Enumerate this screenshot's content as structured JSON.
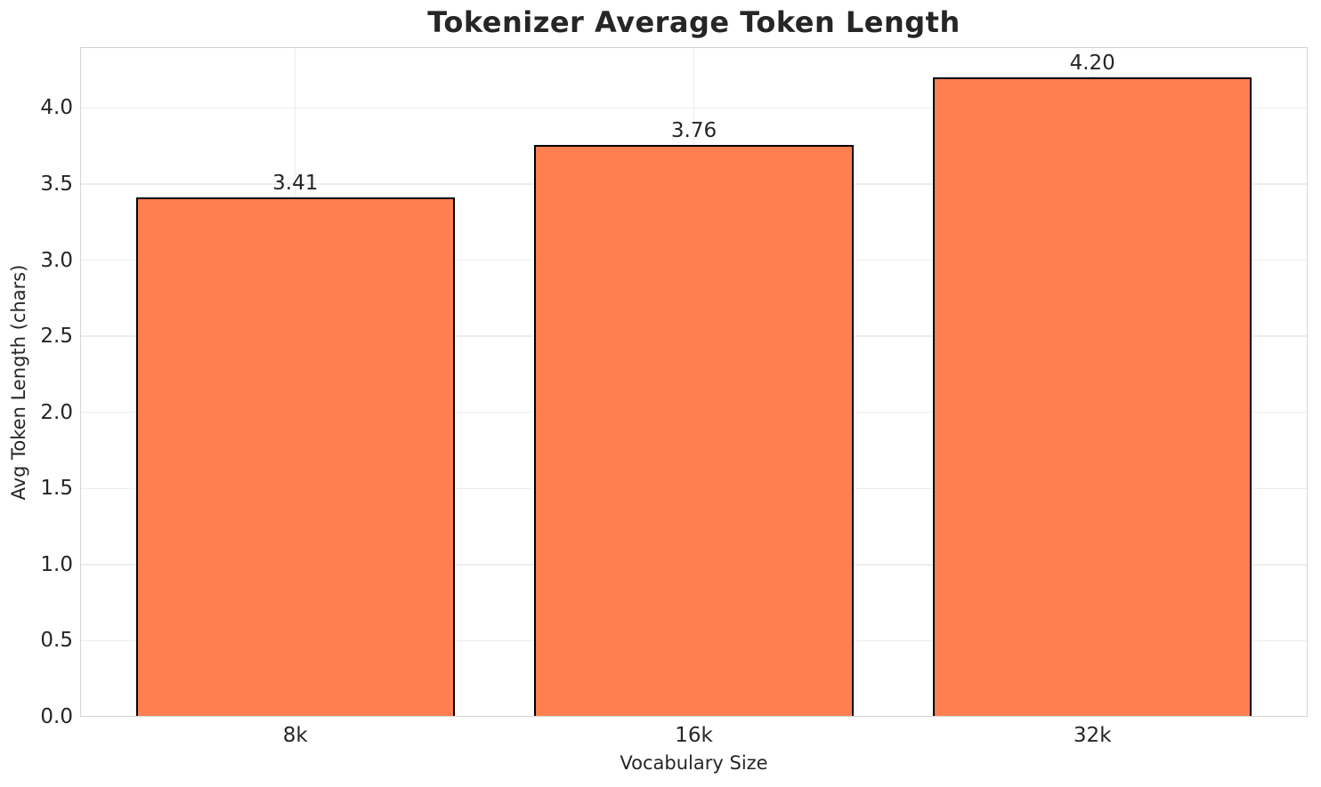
{
  "chart_data": {
    "type": "bar",
    "title": "Tokenizer Average Token Length",
    "xlabel": "Vocabulary Size",
    "ylabel": "Avg Token Length (chars)",
    "categories": [
      "8k",
      "16k",
      "32k"
    ],
    "values": [
      3.41,
      3.76,
      4.2
    ],
    "bar_labels": [
      "3.41",
      "3.76",
      "4.20"
    ],
    "ytick_values": [
      0.0,
      0.5,
      1.0,
      1.5,
      2.0,
      2.5,
      3.0,
      3.5,
      4.0
    ],
    "ytick_labels": [
      "0.0",
      "0.5",
      "1.0",
      "1.5",
      "2.0",
      "2.5",
      "3.0",
      "3.5",
      "4.0"
    ],
    "ylim": [
      0,
      4.4
    ],
    "xlim": [
      -0.54,
      2.54
    ],
    "bar_width": 0.8,
    "grid": true,
    "legend_position": "none",
    "colors": {
      "bar_fill": "#ff7f50",
      "bar_edge": "#000000",
      "grid": "#ededed",
      "spine": "#d4d4d4",
      "text": "#262626"
    }
  }
}
